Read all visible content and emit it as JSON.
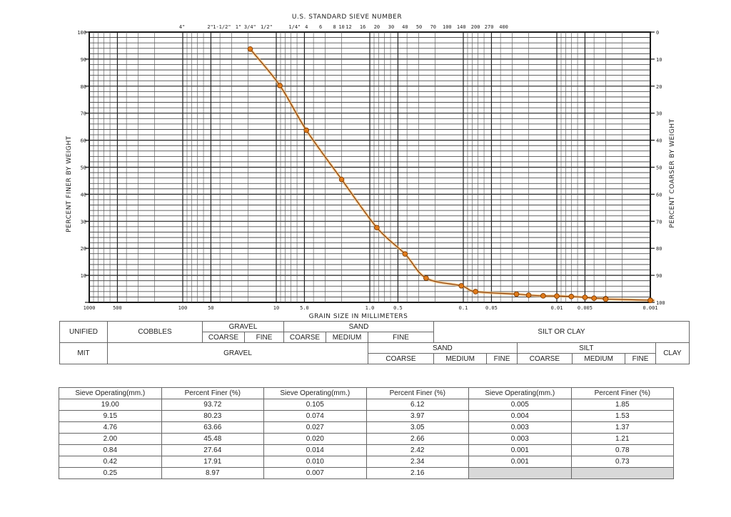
{
  "chart_data": {
    "type": "line",
    "title": "U.S. STANDARD SIEVE NUMBER",
    "xlabel": "GRAIN SIZE IN MILLIMETERS",
    "ylabel": "PERCENT FINER BY WEIGHT",
    "ylabel_right": "PERCENT COARSER BY WEIGHT",
    "x_scale": "log",
    "xlim": [
      1000,
      0.001
    ],
    "ylim": [
      0,
      100
    ],
    "grid": true,
    "x_tick_labels": [
      {
        "value": 1000,
        "label": "1000"
      },
      {
        "value": 500,
        "label": "500"
      },
      {
        "value": 100,
        "label": "100"
      },
      {
        "value": 50,
        "label": "50"
      },
      {
        "value": 10,
        "label": "10"
      },
      {
        "value": 5,
        "label": "5.0"
      },
      {
        "value": 1,
        "label": "1.0"
      },
      {
        "value": 0.5,
        "label": "0.5"
      },
      {
        "value": 0.1,
        "label": "0.1"
      },
      {
        "value": 0.05,
        "label": "0.05"
      },
      {
        "value": 0.01,
        "label": "0.01"
      },
      {
        "value": 0.005,
        "label": "0.005"
      },
      {
        "value": 0.001,
        "label": "0.001"
      }
    ],
    "sieve_labels": [
      {
        "value": 101.6,
        "label": "4\""
      },
      {
        "value": 50.8,
        "label": "2\""
      },
      {
        "value": 38.1,
        "label": "1-1/2\""
      },
      {
        "value": 25.4,
        "label": "1\""
      },
      {
        "value": 19.05,
        "label": "3/4\""
      },
      {
        "value": 12.7,
        "label": "1/2\""
      },
      {
        "value": 6.35,
        "label": "1/4\""
      },
      {
        "value": 4.76,
        "label": "4"
      },
      {
        "value": 3.36,
        "label": "6"
      },
      {
        "value": 2.38,
        "label": "8"
      },
      {
        "value": 2.0,
        "label": "10"
      },
      {
        "value": 1.68,
        "label": "12"
      },
      {
        "value": 1.19,
        "label": "16"
      },
      {
        "value": 0.84,
        "label": "20"
      },
      {
        "value": 0.59,
        "label": "30"
      },
      {
        "value": 0.42,
        "label": "40"
      },
      {
        "value": 0.297,
        "label": "50"
      },
      {
        "value": 0.21,
        "label": "70"
      },
      {
        "value": 0.149,
        "label": "100"
      },
      {
        "value": 0.105,
        "label": "140"
      },
      {
        "value": 0.074,
        "label": "200"
      },
      {
        "value": 0.053,
        "label": "270"
      },
      {
        "value": 0.037,
        "label": "400"
      }
    ],
    "y_ticks": [
      0,
      10,
      20,
      30,
      40,
      50,
      60,
      70,
      80,
      90,
      100
    ],
    "y_tick_labels_left": [
      "",
      "10",
      "20",
      "30",
      "40",
      "50",
      "60",
      "70",
      "80",
      "90",
      "100"
    ],
    "y_tick_labels_right": [
      "100",
      "90",
      "80",
      "70",
      "60",
      "50",
      "40",
      "30",
      "20",
      "10",
      "0"
    ],
    "series": [
      {
        "x": [
          19.0,
          9.15,
          4.76,
          2.0,
          0.84,
          0.42,
          0.25,
          0.105,
          0.074,
          0.027,
          0.02,
          0.014,
          0.01,
          0.007,
          0.005,
          0.004,
          0.003,
          0.003,
          0.001,
          0.001
        ],
        "y": [
          93.72,
          80.23,
          63.66,
          45.48,
          27.64,
          17.91,
          8.97,
          6.12,
          3.97,
          3.05,
          2.66,
          2.42,
          2.34,
          2.16,
          1.85,
          1.53,
          1.37,
          1.21,
          0.78,
          0.73
        ],
        "color": "#e07b1a"
      }
    ]
  },
  "classification": {
    "unified": {
      "label": "UNIFIED",
      "cobbles": "COBBLES",
      "gravel": "GRAVEL",
      "sand": "SAND",
      "silt_clay": "SILT OR CLAY",
      "gravel_coarse": "COARSE",
      "gravel_fine": "FINE",
      "sand_coarse": "COARSE",
      "sand_medium": "MEDIUM",
      "sand_fine": "FINE"
    },
    "mit": {
      "label": "MIT",
      "gravel": "GRAVEL",
      "sand": "SAND",
      "silt": "SILT",
      "clay": "CLAY",
      "sand_coarse": "COARSE",
      "sand_medium": "MEDIUM",
      "sand_fine": "FINE",
      "silt_coarse": "COARSE",
      "silt_medium": "MEDIUM",
      "silt_fine": "FINE"
    }
  },
  "sieve_table": {
    "headers": [
      "Sieve Operating(mm.)",
      "Percent Finer (%)",
      "Sieve Operating(mm.)",
      "Percent Finer (%)",
      "Sieve Operating(mm.)",
      "Percent Finer (%)"
    ],
    "rows": [
      [
        "19.00",
        "93.72",
        "0.105",
        "6.12",
        "0.005",
        "1.85"
      ],
      [
        "9.15",
        "80.23",
        "0.074",
        "3.97",
        "0.004",
        "1.53"
      ],
      [
        "4.76",
        "63.66",
        "0.027",
        "3.05",
        "0.003",
        "1.37"
      ],
      [
        "2.00",
        "45.48",
        "0.020",
        "2.66",
        "0.003",
        "1.21"
      ],
      [
        "0.84",
        "27.64",
        "0.014",
        "2.42",
        "0.001",
        "0.78"
      ],
      [
        "0.42",
        "17.91",
        "0.010",
        "2.34",
        "0.001",
        "0.73"
      ],
      [
        "0.25",
        "8.97",
        "0.007",
        "2.16",
        "",
        ""
      ]
    ]
  }
}
